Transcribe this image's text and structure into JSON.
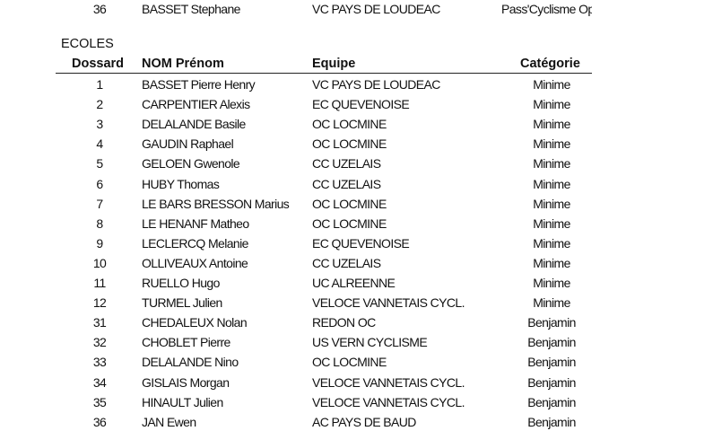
{
  "prev_row": {
    "dossard": "36",
    "nom": "BASSET Stephane",
    "equipe": "VC PAYS DE LOUDEAC",
    "categorie": "Pass'Cyclisme Open"
  },
  "section_title": "ECOLES",
  "headers": {
    "dossard": "Dossard",
    "nom": "NOM Prénom",
    "equipe": "Equipe",
    "categorie": "Catégorie"
  },
  "rows": [
    {
      "dossard": "1",
      "nom": "BASSET Pierre Henry",
      "equipe": "VC PAYS DE LOUDEAC",
      "categorie": "Minime"
    },
    {
      "dossard": "2",
      "nom": "CARPENTIER Alexis",
      "equipe": "EC QUEVENOISE",
      "categorie": "Minime"
    },
    {
      "dossard": "3",
      "nom": "DELALANDE Basile",
      "equipe": "OC LOCMINE",
      "categorie": "Minime"
    },
    {
      "dossard": "4",
      "nom": "GAUDIN Raphael",
      "equipe": "OC LOCMINE",
      "categorie": "Minime"
    },
    {
      "dossard": "5",
      "nom": "GELOEN Gwenole",
      "equipe": "CC UZELAIS",
      "categorie": "Minime"
    },
    {
      "dossard": "6",
      "nom": "HUBY Thomas",
      "equipe": "CC UZELAIS",
      "categorie": "Minime"
    },
    {
      "dossard": "7",
      "nom": "LE BARS BRESSON Marius",
      "equipe": "OC LOCMINE",
      "categorie": "Minime"
    },
    {
      "dossard": "8",
      "nom": "LE HENANF Matheo",
      "equipe": "OC LOCMINE",
      "categorie": "Minime"
    },
    {
      "dossard": "9",
      "nom": "LECLERCQ Melanie",
      "equipe": "EC QUEVENOISE",
      "categorie": "Minime"
    },
    {
      "dossard": "10",
      "nom": "OLLIVEAUX Antoine",
      "equipe": "CC UZELAIS",
      "categorie": "Minime"
    },
    {
      "dossard": "11",
      "nom": "RUELLO Hugo",
      "equipe": "UC ALREENNE",
      "categorie": "Minime"
    },
    {
      "dossard": "12",
      "nom": "TURMEL Julien",
      "equipe": "VELOCE VANNETAIS CYCL.",
      "categorie": "Minime"
    },
    {
      "dossard": "31",
      "nom": "CHEDALEUX Nolan",
      "equipe": "REDON OC",
      "categorie": "Benjamin"
    },
    {
      "dossard": "32",
      "nom": "CHOBLET Pierre",
      "equipe": "US VERN CYCLISME",
      "categorie": "Benjamin"
    },
    {
      "dossard": "33",
      "nom": "DELALANDE Nino",
      "equipe": "OC LOCMINE",
      "categorie": "Benjamin"
    },
    {
      "dossard": "34",
      "nom": "GISLAIS Morgan",
      "equipe": "VELOCE VANNETAIS CYCL.",
      "categorie": "Benjamin"
    },
    {
      "dossard": "35",
      "nom": "HINAULT Julien",
      "equipe": "VELOCE VANNETAIS CYCL.",
      "categorie": "Benjamin"
    },
    {
      "dossard": "36",
      "nom": "JAN Ewen",
      "equipe": "AC PAYS DE BAUD",
      "categorie": "Benjamin"
    }
  ]
}
